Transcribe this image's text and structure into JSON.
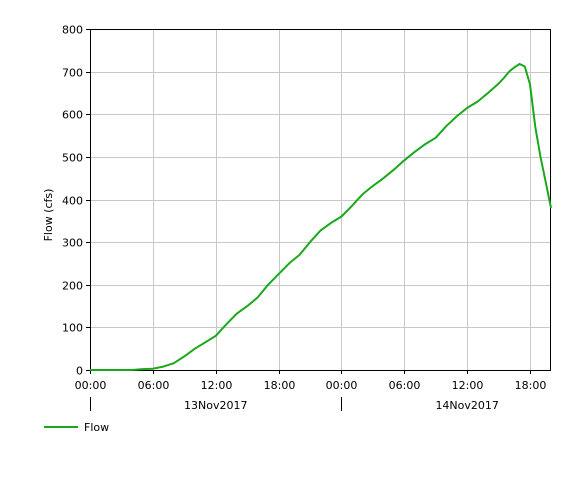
{
  "chart_data": {
    "type": "line",
    "ylabel": "Flow (cfs)",
    "xlabel": "",
    "title": "",
    "ylim": [
      0,
      800
    ],
    "y_ticks": [
      0,
      100,
      200,
      300,
      400,
      500,
      600,
      700,
      800
    ],
    "xlim_hours": [
      0,
      44
    ],
    "x_tick_labels": [
      "00:00",
      "06:00",
      "12:00",
      "18:00",
      "00:00",
      "06:00",
      "12:00",
      "18:00"
    ],
    "x_tick_hours": [
      0,
      6,
      12,
      18,
      24,
      30,
      36,
      42
    ],
    "day_labels": [
      {
        "label": "13Nov2017",
        "day_start_hour": 0
      },
      {
        "label": "14Nov2017",
        "day_start_hour": 24
      }
    ],
    "grid": true,
    "legend_position": "bottom-left",
    "series": [
      {
        "name": "Flow",
        "color": "#1aa81a",
        "x_hours": [
          0,
          4,
          5,
          6,
          7,
          8,
          9,
          10,
          11,
          12,
          13,
          14,
          15,
          16,
          17,
          18,
          19,
          20,
          21,
          22,
          23,
          24,
          25,
          26,
          27,
          28,
          29,
          30,
          31,
          32,
          33,
          34,
          35,
          36,
          37,
          38,
          39,
          39.5,
          40,
          40.5,
          41,
          41.5,
          42,
          42.5,
          43,
          43.5,
          44
        ],
        "values": [
          0,
          0,
          2,
          3,
          8,
          16,
          32,
          50,
          65,
          80,
          107,
          132,
          150,
          170,
          200,
          225,
          250,
          270,
          300,
          327,
          345,
          360,
          385,
          412,
          432,
          450,
          470,
          492,
          512,
          530,
          545,
          572,
          595,
          615,
          630,
          650,
          672,
          685,
          700,
          710,
          718,
          712,
          670,
          570,
          500,
          440,
          380
        ]
      }
    ]
  },
  "legend": {
    "items": [
      {
        "label": "Flow"
      }
    ]
  }
}
